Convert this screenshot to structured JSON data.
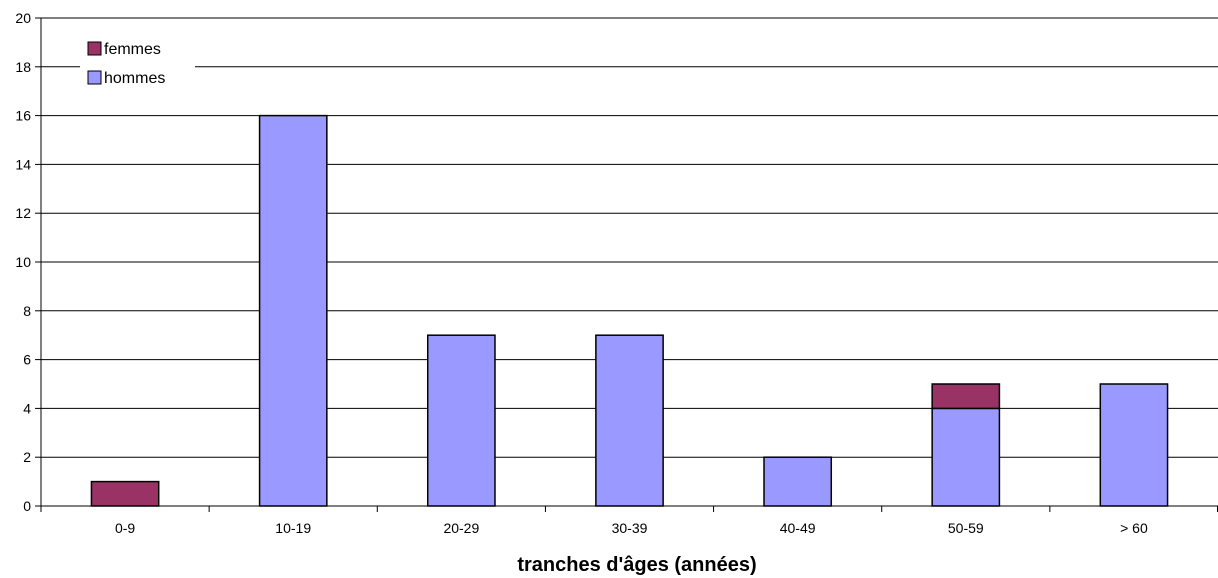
{
  "chart_data": {
    "type": "bar",
    "stacked": true,
    "title": "",
    "xlabel": "tranches d'âges (années)",
    "ylabel": "",
    "categories": [
      "0-9",
      "10-19",
      "20-29",
      "30-39",
      "40-49",
      "50-59",
      "> 60"
    ],
    "series": [
      {
        "name": "hommes",
        "color": "#9999ff",
        "values": [
          0,
          16,
          7,
          7,
          2,
          4,
          5
        ]
      },
      {
        "name": "femmes",
        "color": "#993366",
        "values": [
          1,
          0,
          0,
          0,
          0,
          1,
          0
        ]
      }
    ],
    "ylim": [
      0,
      20
    ],
    "yticks": [
      0,
      2,
      4,
      6,
      8,
      10,
      12,
      14,
      16,
      18,
      20
    ],
    "grid": true,
    "legend_position": "top-left",
    "legend_order": [
      "femmes",
      "hommes"
    ]
  }
}
